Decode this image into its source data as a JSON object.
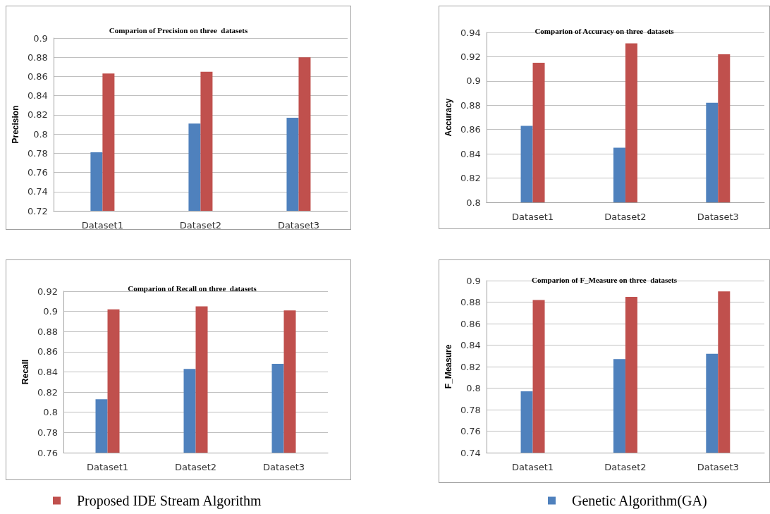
{
  "chart_data": [
    {
      "type": "bar",
      "title": "Comparion of Precision on three  datasets",
      "ylabel": "Precision",
      "categories": [
        "Dataset1",
        "Dataset2",
        "Dataset3"
      ],
      "series": [
        {
          "color": "#4f81bd",
          "values": [
            0.781,
            0.811,
            0.817
          ]
        },
        {
          "color": "#c0504d",
          "values": [
            0.863,
            0.865,
            0.88
          ]
        }
      ],
      "ylim": [
        0.72,
        0.9
      ],
      "yticks": [
        0.72,
        0.74,
        0.76,
        0.78,
        0.8,
        0.82,
        0.84,
        0.86,
        0.88,
        0.9
      ],
      "grid": "y",
      "legend": false
    },
    {
      "type": "bar",
      "title": "Comparion of Accuracy on three  datasets",
      "ylabel": "Accuracy",
      "categories": [
        "Dataset1",
        "Dataset2",
        "Dataset3"
      ],
      "series": [
        {
          "color": "#4f81bd",
          "values": [
            0.863,
            0.845,
            0.882
          ]
        },
        {
          "color": "#c0504d",
          "values": [
            0.915,
            0.931,
            0.922
          ]
        }
      ],
      "ylim": [
        0.8,
        0.94
      ],
      "yticks": [
        0.8,
        0.82,
        0.84,
        0.86,
        0.88,
        0.9,
        0.92,
        0.94
      ],
      "grid": "y",
      "legend": false
    },
    {
      "type": "bar",
      "title": "Comparion of Recall on three  datasets",
      "ylabel": "Recall",
      "categories": [
        "Dataset1",
        "Dataset2",
        "Dataset3"
      ],
      "series": [
        {
          "color": "#4f81bd",
          "values": [
            0.813,
            0.843,
            0.848
          ]
        },
        {
          "name": "Proposed IDE Stream Algorithm",
          "color": "#c0504d",
          "values": [
            0.902,
            0.905,
            0.901
          ]
        }
      ],
      "ylim": [
        0.76,
        0.92
      ],
      "yticks": [
        0.76,
        0.78,
        0.8,
        0.82,
        0.84,
        0.86,
        0.88,
        0.9,
        0.92
      ],
      "grid": "y",
      "legend": "bottom"
    },
    {
      "type": "bar",
      "title": "Comparion of F_Measure on three  datasets",
      "ylabel": "F_Measure",
      "categories": [
        "Dataset1",
        "Dataset2",
        "Dataset3"
      ],
      "series": [
        {
          "name": "Genetic Algorithm(GA)",
          "color": "#4f81bd",
          "values": [
            0.797,
            0.827,
            0.832
          ]
        },
        {
          "color": "#c0504d",
          "values": [
            0.882,
            0.885,
            0.89
          ]
        }
      ],
      "ylim": [
        0.74,
        0.9
      ],
      "yticks": [
        0.74,
        0.76,
        0.78,
        0.8,
        0.82,
        0.84,
        0.86,
        0.88,
        0.9
      ],
      "grid": "y",
      "legend": "bottom"
    }
  ]
}
